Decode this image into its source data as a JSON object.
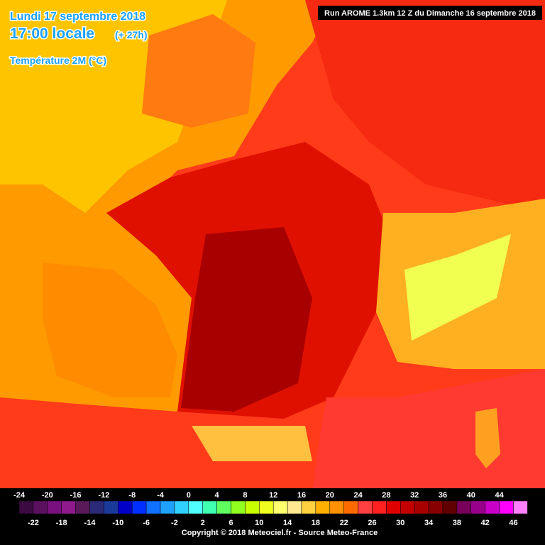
{
  "header": {
    "date": "Lundi 17 septembre 2018",
    "time": "17:00 locale",
    "lead": "(+ 27h)",
    "parameter": "Température 2M (°C)",
    "run": "Run AROME 1.3km 12 Z du Dimanche 16 septembre 2018"
  },
  "legend": {
    "labels_top": [
      -24,
      -20,
      -16,
      -12,
      -8,
      -4,
      0,
      4,
      8,
      12,
      16,
      20,
      24,
      28,
      32,
      36,
      40,
      44
    ],
    "labels_bottom": [
      -22,
      -18,
      -14,
      -10,
      -6,
      -2,
      2,
      6,
      10,
      14,
      18,
      22,
      26,
      30,
      34,
      38,
      42,
      46
    ],
    "colors": [
      "#3a0a40",
      "#5c1060",
      "#7a1080",
      "#8e1a8e",
      "#5a1a5a",
      "#2a2a78",
      "#1a3a9a",
      "#0000c8",
      "#0030ff",
      "#1070ff",
      "#20a0ff",
      "#30d0ff",
      "#50ffff",
      "#40ffb0",
      "#60ff60",
      "#90ff20",
      "#c8ff00",
      "#eeff20",
      "#ffff70",
      "#ffe890",
      "#ffd040",
      "#ffb000",
      "#ff9000",
      "#ff6a00",
      "#ff4040",
      "#ff2020",
      "#e00000",
      "#c40000",
      "#a80000",
      "#880000",
      "#600000",
      "#78005a",
      "#98008a",
      "#c800c8",
      "#ff00ff",
      "#ff80ff"
    ]
  },
  "footer": {
    "copyright": "Copyright © 2018 Meteociel.fr - Source Meteo-France"
  }
}
